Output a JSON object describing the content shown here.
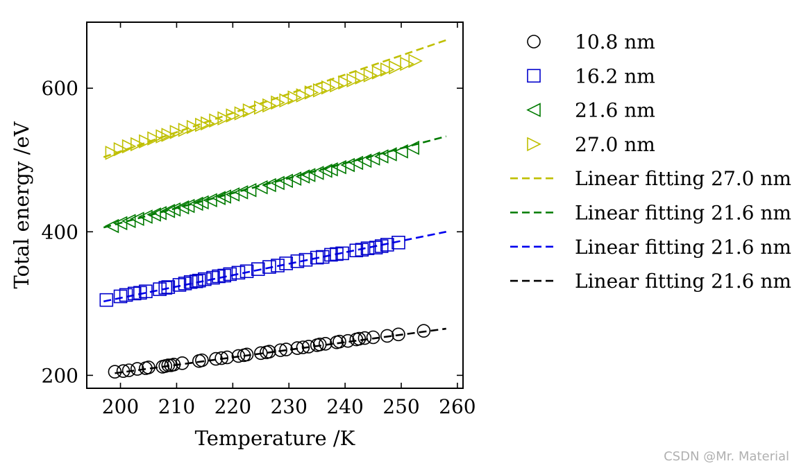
{
  "chart_data": {
    "type": "scatter",
    "title": "",
    "xlabel": "Temperature /K",
    "ylabel": "Total energy /eV",
    "xlim": [
      194,
      261
    ],
    "ylim": [
      182,
      692
    ],
    "xticks": [
      200,
      210,
      220,
      230,
      240,
      250,
      260
    ],
    "yticks": [
      200,
      400,
      600
    ],
    "grid": false,
    "legend_position": "outside-right",
    "series": [
      {
        "name": "10.8 nm",
        "kind": "points",
        "marker": "circle",
        "color": "#000000",
        "x": [
          199.0,
          200.5,
          201.5,
          203.0,
          204.5,
          205.0,
          207.5,
          208.0,
          208.5,
          209.0,
          209.5,
          211.0,
          214.0,
          214.5,
          217.0,
          218.0,
          219.0,
          221.0,
          222.0,
          222.5,
          225.0,
          226.0,
          226.5,
          228.5,
          229.5,
          231.5,
          232.5,
          233.5,
          235.0,
          235.5,
          236.5,
          238.5,
          239.0,
          240.5,
          242.0,
          242.5,
          243.5,
          245.0,
          247.5,
          249.5,
          254.0
        ],
        "y": [
          205,
          206,
          207,
          209,
          210,
          211,
          212,
          213,
          214,
          214,
          215,
          217,
          220,
          221,
          223,
          224,
          225,
          227,
          228,
          229,
          231,
          232,
          233,
          235,
          236,
          238,
          239,
          240,
          242,
          243,
          244,
          246,
          247,
          248,
          250,
          251,
          252,
          253,
          255,
          257,
          262
        ]
      },
      {
        "name": "16.2 nm",
        "kind": "points",
        "marker": "square",
        "color": "#0000cc",
        "x": [
          197.5,
          200.0,
          201.0,
          202.5,
          203.5,
          204.5,
          207.0,
          208.0,
          208.5,
          210.5,
          211.5,
          212.5,
          213.5,
          214.0,
          215.0,
          216.5,
          217.5,
          218.5,
          219.5,
          221.0,
          222.5,
          224.5,
          226.5,
          228.0,
          229.5,
          231.5,
          233.0,
          235.0,
          236.0,
          237.5,
          238.5,
          239.5,
          242.0,
          243.0,
          244.0,
          245.5,
          246.5,
          247.5,
          249.5
        ],
        "y": [
          305,
          310,
          312,
          314,
          315,
          317,
          320,
          322,
          323,
          326,
          328,
          330,
          331,
          332,
          334,
          336,
          338,
          339,
          341,
          343,
          345,
          348,
          351,
          353,
          356,
          359,
          361,
          364,
          365,
          368,
          369,
          370,
          374,
          375,
          377,
          378,
          380,
          382,
          385
        ]
      },
      {
        "name": "21.6 nm",
        "kind": "points",
        "marker": "triangle-left",
        "color": "#007a00",
        "x": [
          198.5,
          200.0,
          201.5,
          203.0,
          204.5,
          206.0,
          207.0,
          208.5,
          209.5,
          211.0,
          212.0,
          213.5,
          214.5,
          216.0,
          217.5,
          218.5,
          220.0,
          221.5,
          223.0,
          225.0,
          226.5,
          228.0,
          229.5,
          231.0,
          232.5,
          233.5,
          235.0,
          236.5,
          237.5,
          239.0,
          240.5,
          242.0,
          243.5,
          245.0,
          246.5,
          248.0,
          250.0,
          252.0
        ],
        "y": [
          408,
          412,
          415,
          418,
          421,
          424,
          426,
          429,
          431,
          434,
          436,
          439,
          441,
          444,
          447,
          449,
          452,
          455,
          458,
          462,
          465,
          468,
          471,
          474,
          477,
          479,
          482,
          485,
          487,
          490,
          493,
          496,
          499,
          502,
          505,
          508,
          512,
          517
        ]
      },
      {
        "name": "27.0 nm",
        "kind": "points",
        "marker": "triangle-right",
        "color": "#bfbf00",
        "x": [
          198.5,
          200.0,
          201.5,
          203.0,
          204.5,
          206.0,
          207.5,
          208.5,
          210.0,
          211.5,
          213.0,
          214.5,
          215.5,
          217.0,
          218.5,
          220.0,
          221.5,
          223.0,
          225.0,
          226.5,
          228.0,
          229.5,
          231.0,
          232.5,
          234.0,
          235.5,
          237.0,
          238.5,
          240.0,
          241.5,
          243.0,
          244.5,
          246.0,
          247.5,
          249.0,
          251.0,
          252.5
        ],
        "y": [
          510,
          515,
          519,
          522,
          526,
          530,
          533,
          535,
          539,
          542,
          546,
          549,
          551,
          555,
          558,
          562,
          565,
          569,
          573,
          576,
          580,
          583,
          587,
          590,
          594,
          597,
          601,
          604,
          608,
          611,
          615,
          618,
          622,
          626,
          629,
          634,
          638
        ]
      },
      {
        "name": "Linear fitting 27.0 nm",
        "kind": "fit",
        "color": "#bfbf00",
        "x": [
          197,
          258
        ],
        "y": [
          504,
          667
        ]
      },
      {
        "name": "Linear fitting 21.6 nm",
        "kind": "fit",
        "color": "#007a00",
        "x": [
          197,
          258
        ],
        "y": [
          406,
          533
        ]
      },
      {
        "name": "Linear fitting 21.6 nm",
        "kind": "fit",
        "color": "#0000ee",
        "x": [
          197,
          258
        ],
        "y": [
          303,
          400
        ]
      },
      {
        "name": "Linear fitting 21.6 nm",
        "kind": "fit",
        "color": "#000000",
        "x": [
          199,
          258
        ],
        "y": [
          203,
          265
        ]
      }
    ],
    "legend": [
      {
        "label": "10.8 nm",
        "marker": "circle",
        "color": "#000000"
      },
      {
        "label": "16.2 nm",
        "marker": "square",
        "color": "#0000cc"
      },
      {
        "label": "21.6 nm",
        "marker": "triangle-left",
        "color": "#007a00"
      },
      {
        "label": "27.0 nm",
        "marker": "triangle-right",
        "color": "#bfbf00"
      },
      {
        "label": "Linear fitting 27.0 nm",
        "marker": "dashed-line",
        "color": "#bfbf00"
      },
      {
        "label": "Linear fitting 21.6 nm",
        "marker": "dashed-line",
        "color": "#007a00"
      },
      {
        "label": "Linear fitting 21.6 nm",
        "marker": "dashed-line",
        "color": "#0000ee"
      },
      {
        "label": "Linear fitting 21.6 nm",
        "marker": "dashed-line",
        "color": "#000000"
      }
    ]
  },
  "watermark": "CSDN @Mr. Material"
}
